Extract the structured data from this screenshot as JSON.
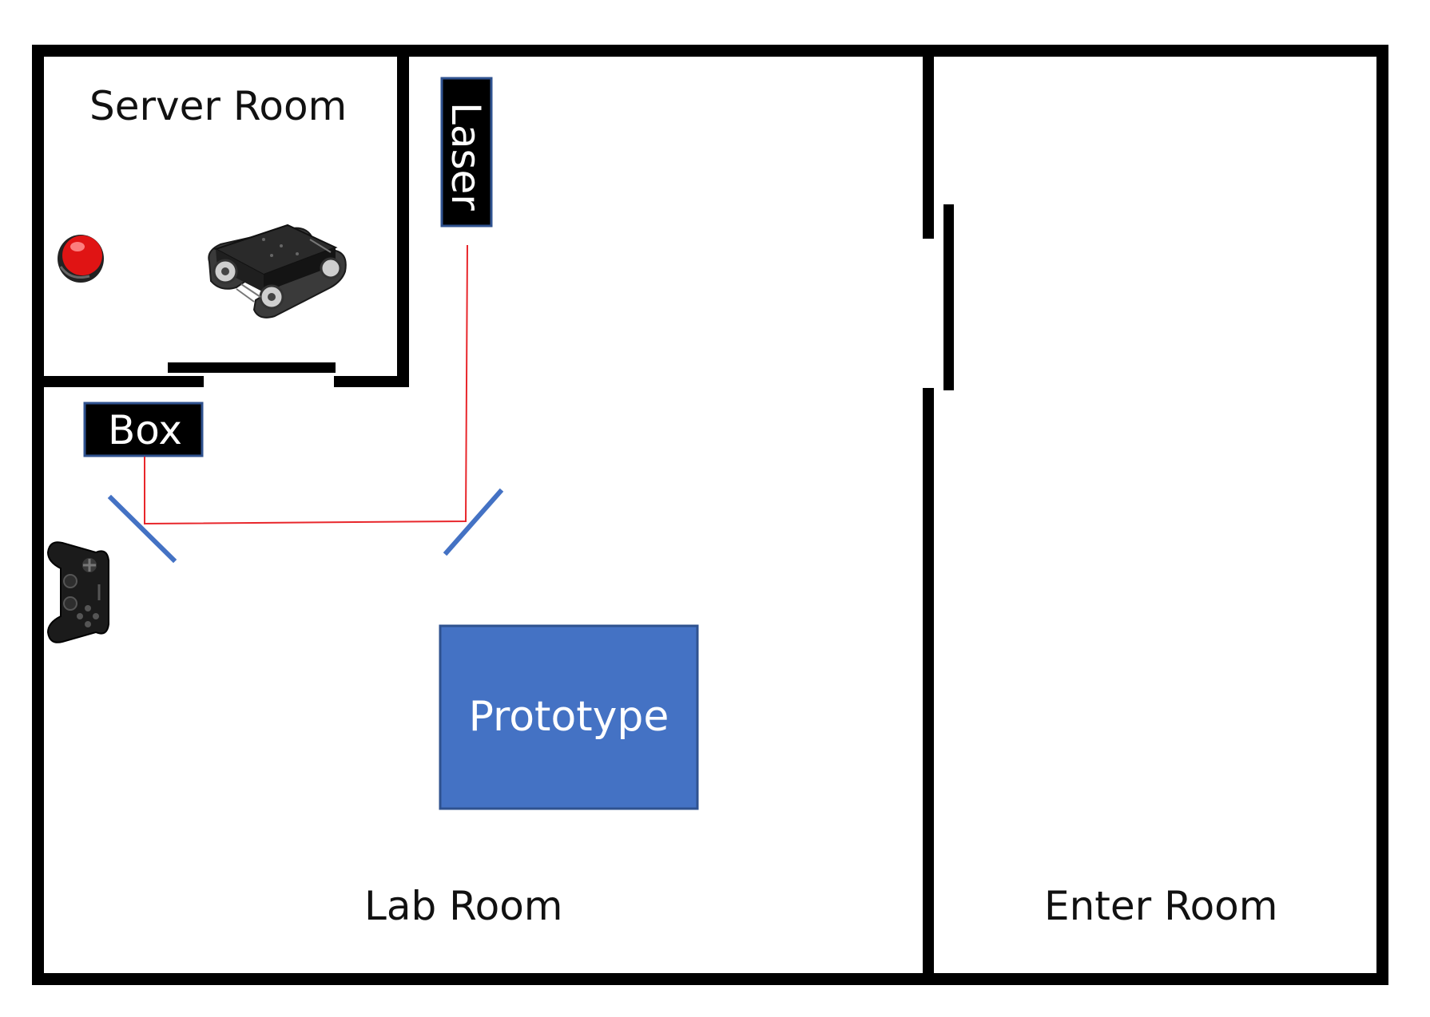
{
  "rooms": {
    "server_room": "Server Room",
    "lab_room": "Lab Room",
    "enter_room": "Enter Room"
  },
  "labels": {
    "laser": "Laser",
    "box": "Box",
    "prototype": "Prototype"
  },
  "icons": {
    "alarm_button": "red-alarm-button-icon",
    "robot": "tracked-robot-chassis-icon",
    "gamepad": "gamepad-controller-icon"
  },
  "colors": {
    "wall": "#000000",
    "laser_beam": "#e8262b",
    "mirror": "#4472c4",
    "prototype_fill": "#4472c4",
    "prototype_border": "#2f528f",
    "tag_fill": "#000000",
    "tag_border": "#2f528f",
    "alarm_red": "#e01414"
  }
}
